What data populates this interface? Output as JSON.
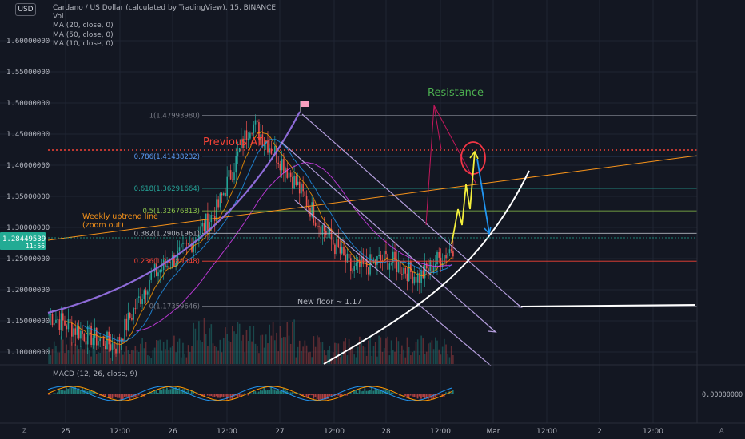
{
  "header": {
    "currency_label": "USD",
    "title": "Cardano / US Dollar (calculated by TradingView), 15, BINANCE",
    "indicators": [
      "Vol",
      "MA (20, close, 0)",
      "MA (50, close, 0)",
      "MA (10, close, 0)"
    ]
  },
  "price_axis": {
    "ticks": [
      "1.60000000",
      "1.55000000",
      "1.50000000",
      "1.45000000",
      "1.40000000",
      "1.35000000",
      "1.30000000",
      "1.25000000",
      "1.20000000",
      "1.15000000",
      "1.10000000"
    ],
    "current_price": "1.28449539",
    "current_time": "11:56"
  },
  "time_axis": {
    "ticks": [
      "25",
      "12:00",
      "26",
      "12:00",
      "27",
      "12:00",
      "28",
      "12:00",
      "Mar",
      "12:00",
      "2",
      "12:00"
    ]
  },
  "fib_levels": [
    {
      "label": "1(1.47993980)",
      "price": 1.4799398,
      "color": "#787b86"
    },
    {
      "label": "0.786(1.41438232)",
      "price": 1.41438232,
      "color": "#5b9cf6"
    },
    {
      "label": "0.618(1.36291664)",
      "price": 1.36291664,
      "color": "#26a69a"
    },
    {
      "label": "0.5(1.32676813)",
      "price": 1.32676813,
      "color": "#8bc34a"
    },
    {
      "label": "0.382(1.29061961)",
      "price": 1.29061961,
      "color": "#b2b5be"
    },
    {
      "label": "0.236(1.24589348)",
      "price": 1.24589348,
      "color": "#f44336"
    },
    {
      "label": "0(1.17359646)",
      "price": 1.17359646,
      "color": "#787b86"
    }
  ],
  "annotations": {
    "resistance": "Resistance",
    "previous_ath": "Previous ATH",
    "uptrend_line_1": "Weekly uptrend line",
    "uptrend_line_2": "(zoom out)",
    "new_floor": "New floor ~ 1.17"
  },
  "macd": {
    "label": "MACD (12, 26, close, 9)",
    "axis_value": "0.00000000"
  },
  "toolbar": {
    "left": "Z",
    "right": "A"
  },
  "colors": {
    "background": "#131722",
    "up": "#26a69a",
    "down": "#ef5350",
    "price_badge": "#22ab94",
    "channel": "#b39ddb",
    "uptrend": "#f7931a",
    "parabola": "#8e6bd8",
    "curve": "#ffffff",
    "resistance": "#4caf50",
    "ath": "#f44336"
  },
  "chart_data": {
    "type": "candlestick",
    "symbol": "Cardano / US Dollar",
    "interval": "15",
    "exchange": "BINANCE",
    "ylim": [
      1.08,
      1.65
    ],
    "current_price": 1.28449539,
    "previous_ath": 1.423,
    "new_floor": 1.17,
    "approx_close_path": [
      {
        "t": "25 00:00",
        "p": 1.16
      },
      {
        "t": "25 12:00",
        "p": 1.13
      },
      {
        "t": "26 00:00",
        "p": 1.11
      },
      {
        "t": "26 12:00",
        "p": 1.22
      },
      {
        "t": "26 18:00",
        "p": 1.26
      },
      {
        "t": "27 00:00",
        "p": 1.33
      },
      {
        "t": "27 06:00",
        "p": 1.47
      },
      {
        "t": "27 12:00",
        "p": 1.4
      },
      {
        "t": "27 18:00",
        "p": 1.31
      },
      {
        "t": "28 00:00",
        "p": 1.23
      },
      {
        "t": "28 06:00",
        "p": 1.25
      },
      {
        "t": "28 12:00",
        "p": 1.22
      },
      {
        "t": "28 18:00",
        "p": 1.27
      }
    ]
  }
}
